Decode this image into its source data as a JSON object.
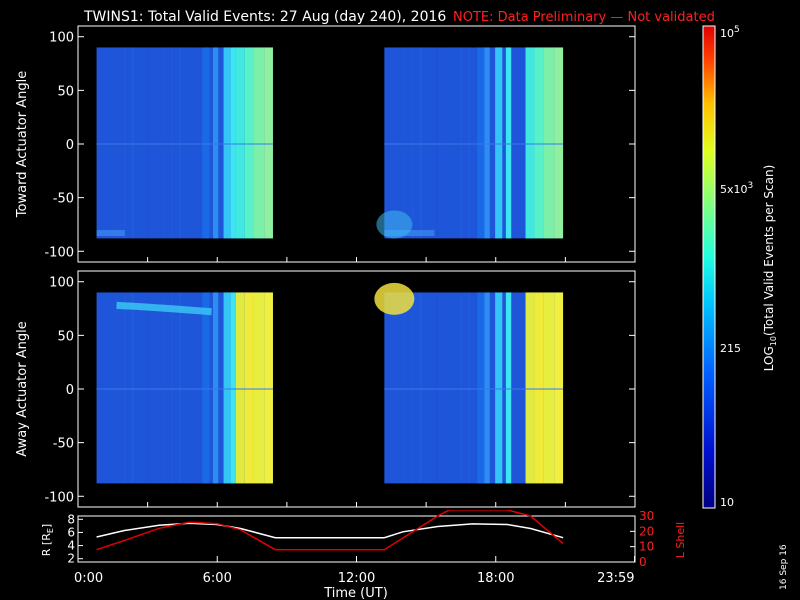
{
  "header": {
    "title": "TWINS1: Total Valid Events: 27 Aug (day 240), 2016",
    "note": "NOTE: Data Preliminary — Not validated"
  },
  "footer": {
    "stamp": "16 Sep 16"
  },
  "colors": {
    "note": "#ff2020",
    "background": "#000000",
    "frame": "#ffffff",
    "rLine": "#ffffff",
    "lShellLine": "#e00000"
  },
  "chart_data": [
    {
      "type": "heatmap",
      "id": "toward",
      "ylabel": "Toward Actuator Angle",
      "ylim": [
        -110,
        110
      ],
      "yticks": [
        "100",
        "50",
        "0",
        "-50",
        "-100"
      ],
      "ytick_values": [
        100,
        50,
        0,
        -50,
        -100
      ],
      "xlim": [
        0,
        24
      ],
      "data_blocks": [
        {
          "x0": 0.8,
          "x1": 8.4,
          "y0": -88,
          "y1": 90
        },
        {
          "x0": 13.2,
          "x1": 20.9,
          "y0": -88,
          "y1": 90
        }
      ]
    },
    {
      "type": "heatmap",
      "id": "away",
      "ylabel": "Away Actuator Angle",
      "ylim": [
        -110,
        110
      ],
      "yticks": [
        "100",
        "50",
        "0",
        "-50",
        "-100"
      ],
      "ytick_values": [
        100,
        50,
        0,
        -50,
        -100
      ],
      "xlim": [
        0,
        24
      ],
      "data_blocks": [
        {
          "x0": 0.8,
          "x1": 8.4,
          "y0": -88,
          "y1": 90
        },
        {
          "x0": 13.2,
          "x1": 20.9,
          "y0": -88,
          "y1": 90
        }
      ]
    },
    {
      "type": "line",
      "id": "orbit",
      "ylabel": "R [R",
      "ylabel_sub": "E",
      "ylabel_end": "]",
      "ylabel_right": "L Shell",
      "ylim": [
        1.5,
        8.5
      ],
      "yticks": [
        "8",
        "6",
        "4",
        "2"
      ],
      "ytick_values": [
        8,
        6,
        4,
        2
      ],
      "ylim_right": [
        0,
        30
      ],
      "yticks_right": [
        "30",
        "20",
        "10",
        "0"
      ],
      "ytick_values_right": [
        30,
        20,
        10,
        0
      ],
      "xlim": [
        0,
        24
      ],
      "xlabel": "Time (UT)",
      "xticks": [
        "0:00",
        "6:00",
        "12:00",
        "18:00",
        "23:59"
      ],
      "xtick_values": [
        0,
        6,
        12,
        18,
        23.98
      ],
      "series": [
        {
          "name": "",
          "axis": "left",
          "x": [
            0.8,
            2,
            3.5,
            4.8,
            6,
            7,
            8.5,
            10,
            13.2,
            14,
            15.5,
            17,
            18.5,
            19.5,
            20.9
          ],
          "y": [
            5.3,
            6.3,
            7.1,
            7.4,
            7.2,
            6.6,
            5.2,
            5.2,
            5.2,
            6.1,
            6.9,
            7.3,
            7.2,
            6.6,
            5.2
          ]
        },
        {
          "name": "",
          "axis": "right",
          "x": [
            0.8,
            2,
            3.5,
            4.8,
            6,
            7,
            8.5,
            10,
            13.2,
            15.5,
            16,
            18.5,
            19.5,
            20.9
          ],
          "y": [
            8,
            14,
            22,
            26,
            25,
            21,
            8,
            8,
            8,
            30,
            34,
            34,
            30,
            12
          ]
        }
      ]
    }
  ],
  "colorbar": {
    "label_prefix": "LOG",
    "label_sub": "10",
    "label_suffix": "(Total Valid Events per Scan)",
    "min_label": "10",
    "mid_label": "215",
    "upper_label": "5x10",
    "upper_exp": "3",
    "max_label": "10",
    "max_exp": "5",
    "tick_values": [
      10,
      215,
      5000,
      100000
    ]
  }
}
